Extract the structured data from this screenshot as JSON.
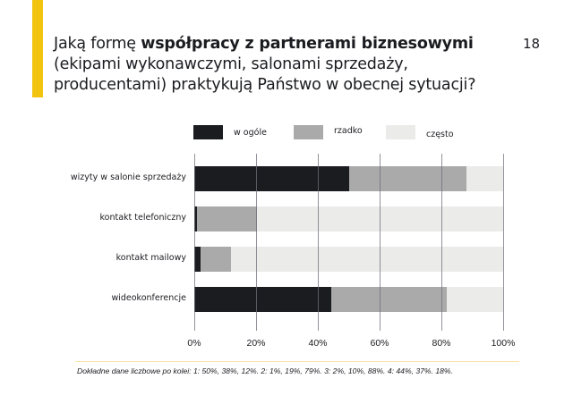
{
  "slide": {
    "page_number": "18",
    "accent_color": "#f2c30f",
    "title": {
      "part1": "Jaką formę ",
      "bold": "współpracy z partnerami biznesowymi",
      "line2": "(ekipami wykonawczymi, salonami sprzedaży,",
      "line3": "producentami) praktykują Państwo w obecnej sytuacji?"
    },
    "footer": "Dokładne dane liczbowe po kolei: 1: 50%, 38%, 12%. 2: 1%, 19%, 79%. 3: 2%, 10%, 88%. 4: 44%, 37%. 18%."
  },
  "legend": [
    {
      "label": "w ogóle",
      "color": "#1b1c20"
    },
    {
      "label": "rzadko",
      "color": "#aaaaaa"
    },
    {
      "label": "często",
      "color": "#ebebea"
    }
  ],
  "axis": {
    "ticks": [
      "0%",
      "20%",
      "40%",
      "60%",
      "80%",
      "100%"
    ]
  },
  "chart_data": {
    "type": "bar",
    "orientation": "horizontal",
    "stacked": true,
    "title": "Jaką formę współpracy z partnerami biznesowymi (ekipami wykonawczymi, salonami sprzedaży, producentami) praktykują Państwo w obecnej sytuacji?",
    "categories": [
      "wizyty w salonie sprzedaży",
      "kontakt telefoniczny",
      "kontakt mailowy",
      "wideokonferencje"
    ],
    "series": [
      {
        "name": "w ogóle",
        "color": "#1b1c20",
        "values": [
          50,
          1,
          2,
          44
        ]
      },
      {
        "name": "rzadko",
        "color": "#aaaaaa",
        "values": [
          38,
          19,
          10,
          37
        ]
      },
      {
        "name": "często",
        "color": "#ebebea",
        "values": [
          12,
          79,
          88,
          18
        ]
      }
    ],
    "xlabel": "",
    "ylabel": "",
    "xlim": [
      0,
      100
    ],
    "x_tick_labels": [
      "0%",
      "20%",
      "40%",
      "60%",
      "80%",
      "100%"
    ],
    "grid": true,
    "legend_position": "top"
  }
}
